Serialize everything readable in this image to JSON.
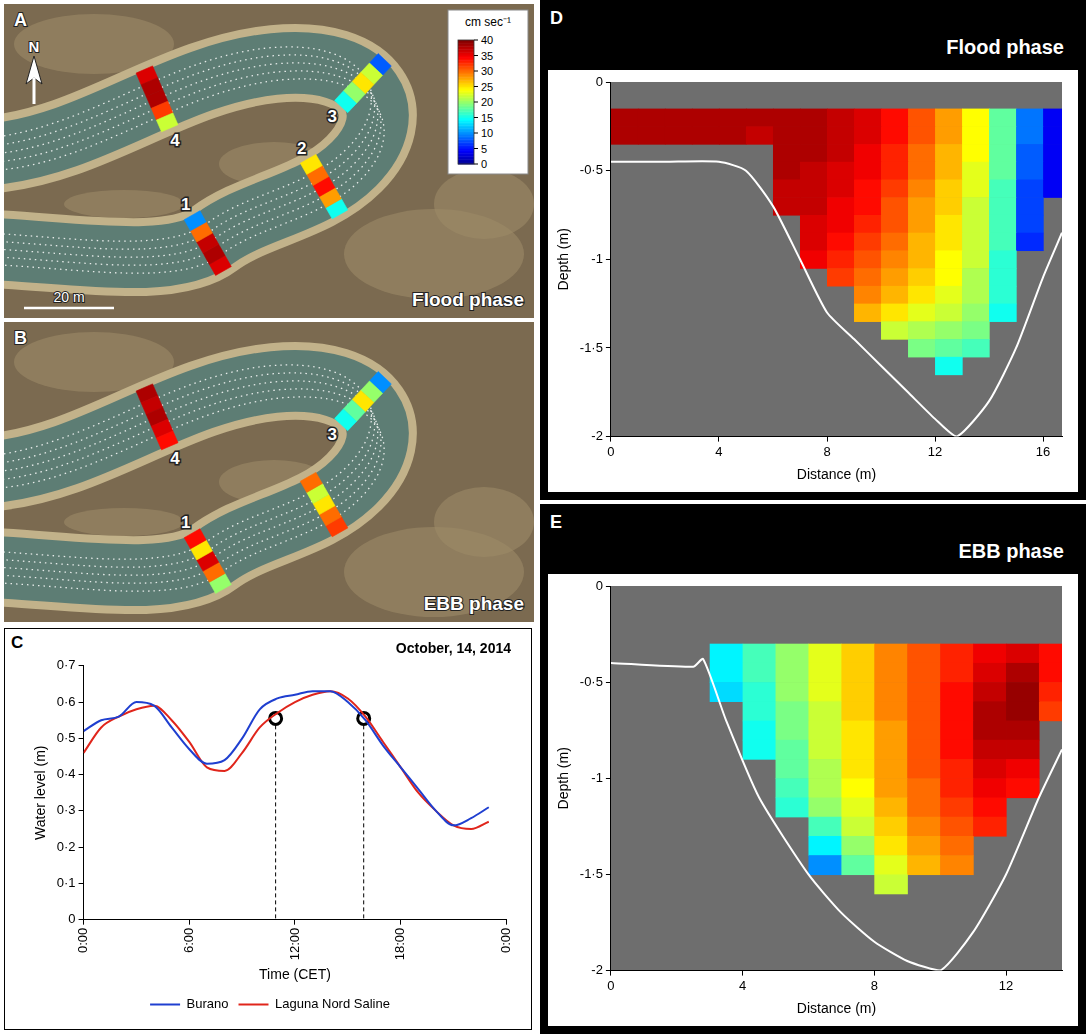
{
  "maps": [
    {
      "panel": "A",
      "title": "Flood phase",
      "north": "N",
      "scale_bar": "20 m",
      "colorbar": {
        "title": "cm sec⁻¹",
        "range": [
          0,
          40
        ],
        "ticks": [
          0,
          5,
          10,
          15,
          20,
          25,
          30,
          35,
          40
        ]
      },
      "transects": [
        {
          "label": "1",
          "values": [
            36,
            38,
            37,
            30,
            10
          ]
        },
        {
          "label": "2",
          "values": [
            15,
            28,
            34,
            30,
            25
          ]
        },
        {
          "label": "3",
          "values": [
            8,
            22,
            25,
            20,
            15
          ]
        },
        {
          "label": "4",
          "values": [
            36,
            38,
            38,
            32,
            22
          ]
        }
      ]
    },
    {
      "panel": "B",
      "title": "EBB phase",
      "transects": [
        {
          "label": "1",
          "values": [
            20,
            30,
            36,
            25,
            34
          ]
        },
        {
          "label": null,
          "values": [
            32,
            30,
            25,
            22,
            30
          ]
        },
        {
          "label": "3",
          "values": [
            10,
            20,
            25,
            18,
            15
          ]
        },
        {
          "label": "4",
          "values": [
            38,
            37,
            38,
            36,
            34
          ]
        }
      ]
    }
  ],
  "chart_data": [
    {
      "panel": "C",
      "type": "line",
      "title": "October, 14, 2014",
      "x_label": "Time (CET)",
      "y_label": "Water level (m)",
      "x": [
        0,
        1,
        2,
        3,
        4,
        5,
        6,
        7,
        8,
        9,
        10,
        11,
        12,
        13,
        14,
        15,
        16,
        17,
        18,
        19,
        20,
        21,
        22,
        23
      ],
      "series": [
        {
          "name": "Burano",
          "color": "#1f3fd0",
          "line_style": "solid",
          "values": [
            0.52,
            0.55,
            0.56,
            0.6,
            0.59,
            0.53,
            0.47,
            0.43,
            0.44,
            0.5,
            0.58,
            0.61,
            0.62,
            0.63,
            0.63,
            0.6,
            0.55,
            0.48,
            0.42,
            0.36,
            0.3,
            0.26,
            0.28,
            0.31
          ]
        },
        {
          "name": "Laguna Nord Saline",
          "color": "#e0251b",
          "line_style": "solid",
          "values": [
            0.46,
            0.53,
            0.56,
            0.58,
            0.59,
            0.55,
            0.49,
            0.42,
            0.41,
            0.46,
            0.53,
            0.57,
            0.6,
            0.62,
            0.63,
            0.61,
            0.56,
            0.49,
            0.42,
            0.35,
            0.3,
            0.26,
            0.25,
            0.27
          ]
        }
      ],
      "points": {
        "marker": "circle",
        "x": [
          10.9,
          15.9
        ],
        "values": [
          0.555,
          0.555
        ]
      },
      "xlim": [
        0,
        24
      ],
      "xticks": [
        {
          "value": 0,
          "label": "0:00"
        },
        {
          "value": 6,
          "label": "6:00"
        },
        {
          "value": 12,
          "label": "12:00"
        },
        {
          "value": 18,
          "label": "18:00"
        },
        {
          "value": 24,
          "label": "0:00"
        }
      ],
      "ylim": [
        0,
        0.7
      ],
      "yticks": [
        0,
        {
          "value": 0.1,
          "label": "0·1"
        },
        {
          "value": 0.2,
          "label": "0·2"
        },
        {
          "value": 0.3,
          "label": "0·3"
        },
        {
          "value": 0.4,
          "label": "0·4"
        },
        {
          "value": 0.5,
          "label": "0·5"
        },
        {
          "value": 0.6,
          "label": "0·6"
        },
        {
          "value": 0.7,
          "label": "0·7"
        }
      ],
      "grid": false,
      "legend": "bottom"
    },
    {
      "panel": "D",
      "type": "heatmap",
      "title": "Flood phase",
      "x_label": "Distance (m)",
      "y_label": "Depth (m)",
      "xlim": [
        0,
        16.7
      ],
      "xticks": [
        0,
        4,
        8,
        12,
        16
      ],
      "ylim": [
        -2,
        0
      ],
      "yticks": [
        -2,
        {
          "value": -1.5,
          "label": "-1·5"
        },
        -1,
        {
          "value": -0.5,
          "label": "-0·5"
        },
        0
      ],
      "grid": false,
      "cells": {
        "x": [
          0.5,
          1.5,
          2.5,
          3.5,
          4.5,
          5.5,
          6.5,
          7.5,
          8.5,
          9.5,
          10.5,
          11.5,
          12.5,
          13.5,
          14.5,
          15.5,
          16.5
        ],
        "y": [
          -0.2,
          -0.3,
          -0.4,
          -0.5,
          -0.6,
          -0.7,
          -0.8,
          -0.9,
          -1.0,
          -1.1,
          -1.2,
          -1.3,
          -1.4,
          -1.5,
          -1.6
        ],
        "values": [
          [
            38,
            38,
            38,
            38,
            38,
            38,
            38,
            38,
            37,
            36,
            34,
            31,
            28,
            24,
            18,
            9,
            4
          ],
          [
            38,
            38,
            38,
            38,
            38,
            37,
            38,
            38,
            37,
            36,
            34,
            31,
            28,
            24,
            18,
            9,
            4
          ],
          [
            null,
            null,
            null,
            null,
            null,
            null,
            38,
            38,
            37,
            35,
            33,
            30,
            27,
            24,
            18,
            8,
            4
          ],
          [
            null,
            null,
            null,
            null,
            null,
            null,
            38,
            37,
            36,
            35,
            33,
            30,
            27,
            23,
            18,
            8,
            4
          ],
          [
            null,
            null,
            null,
            null,
            null,
            null,
            37,
            37,
            36,
            34,
            32,
            29,
            26,
            23,
            17,
            7,
            4
          ],
          [
            null,
            null,
            null,
            null,
            null,
            null,
            37,
            37,
            35,
            34,
            31,
            28,
            26,
            22,
            17,
            7,
            null
          ],
          [
            null,
            null,
            null,
            null,
            null,
            null,
            null,
            36,
            35,
            33,
            31,
            28,
            25,
            22,
            17,
            7,
            null
          ],
          [
            null,
            null,
            null,
            null,
            null,
            null,
            null,
            36,
            34,
            32,
            30,
            27,
            25,
            22,
            17,
            6,
            null
          ],
          [
            null,
            null,
            null,
            null,
            null,
            null,
            null,
            35,
            33,
            31,
            29,
            27,
            24,
            22,
            16,
            null,
            null
          ],
          [
            null,
            null,
            null,
            null,
            null,
            null,
            null,
            null,
            32,
            30,
            28,
            26,
            24,
            21,
            16,
            null,
            null
          ],
          [
            null,
            null,
            null,
            null,
            null,
            null,
            null,
            null,
            null,
            29,
            27,
            25,
            23,
            21,
            16,
            null,
            null
          ],
          [
            null,
            null,
            null,
            null,
            null,
            null,
            null,
            null,
            null,
            27,
            25,
            23,
            22,
            20,
            15,
            null,
            null
          ],
          [
            null,
            null,
            null,
            null,
            null,
            null,
            null,
            null,
            null,
            null,
            22,
            21,
            20,
            19,
            null,
            null,
            null
          ],
          [
            null,
            null,
            null,
            null,
            null,
            null,
            null,
            null,
            null,
            null,
            null,
            19,
            18,
            17,
            null,
            null,
            null
          ],
          [
            null,
            null,
            null,
            null,
            null,
            null,
            null,
            null,
            null,
            null,
            null,
            null,
            15,
            null,
            null,
            null,
            null
          ]
        ]
      },
      "profile": {
        "color": "#ffffff",
        "x": [
          0,
          2,
          4,
          5,
          6,
          7,
          8,
          9,
          10,
          11,
          12,
          12.8,
          14,
          15,
          16,
          16.7
        ],
        "values": [
          -0.45,
          -0.45,
          -0.45,
          -0.5,
          -0.7,
          -1.0,
          -1.3,
          -1.45,
          -1.6,
          -1.75,
          -1.9,
          -2.0,
          -1.8,
          -1.5,
          -1.1,
          -0.85
        ]
      }
    },
    {
      "panel": "E",
      "type": "heatmap",
      "title": "EBB phase",
      "x_label": "Distance (m)",
      "y_label": "Depth (m)",
      "xlim": [
        0,
        13.7
      ],
      "xticks": [
        0,
        4,
        8,
        12
      ],
      "ylim": [
        -2,
        0
      ],
      "yticks": [
        -2,
        {
          "value": -1.5,
          "label": "-1·5"
        },
        -1,
        {
          "value": -0.5,
          "label": "-0·5"
        },
        0
      ],
      "grid": false,
      "cells": {
        "x": [
          3.5,
          4.5,
          5.5,
          6.5,
          7.5,
          8.5,
          9.5,
          10.5,
          11.5,
          12.5,
          13.5
        ],
        "y": [
          -0.35,
          -0.45,
          -0.55,
          -0.65,
          -0.75,
          -0.85,
          -0.95,
          -1.05,
          -1.15,
          -1.25,
          -1.35,
          -1.45,
          -1.55
        ],
        "values": [
          [
            14,
            17,
            20,
            23,
            26,
            29,
            31,
            33,
            35,
            36,
            34
          ],
          [
            14,
            17,
            20,
            23,
            26,
            29,
            31,
            33,
            36,
            38,
            34
          ],
          [
            13,
            16,
            20,
            23,
            26,
            29,
            31,
            34,
            37,
            39,
            33
          ],
          [
            null,
            16,
            19,
            22,
            26,
            29,
            31,
            34,
            38,
            39,
            32
          ],
          [
            null,
            15,
            19,
            22,
            25,
            28,
            31,
            34,
            38,
            38,
            null
          ],
          [
            null,
            15,
            18,
            22,
            25,
            28,
            31,
            34,
            37,
            37,
            null
          ],
          [
            null,
            null,
            18,
            21,
            25,
            28,
            31,
            33,
            36,
            35,
            null
          ],
          [
            null,
            null,
            17,
            21,
            24,
            28,
            30,
            33,
            35,
            34,
            null
          ],
          [
            null,
            null,
            16,
            20,
            23,
            27,
            30,
            32,
            34,
            null,
            null
          ],
          [
            null,
            null,
            null,
            17,
            22,
            26,
            29,
            31,
            33,
            null,
            null
          ],
          [
            null,
            null,
            null,
            14,
            20,
            25,
            28,
            30,
            null,
            null,
            null
          ],
          [
            null,
            null,
            null,
            10,
            18,
            23,
            27,
            29,
            null,
            null,
            null
          ],
          [
            null,
            null,
            null,
            null,
            null,
            22,
            null,
            null,
            null,
            null,
            null
          ]
        ]
      },
      "profile": {
        "color": "#ffffff",
        "x": [
          0,
          2.5,
          2.8,
          3.5,
          4.5,
          6,
          7,
          8,
          9,
          10,
          11,
          12,
          13,
          13.7
        ],
        "values": [
          -0.4,
          -0.42,
          -0.38,
          -0.7,
          -1.1,
          -1.5,
          -1.7,
          -1.85,
          -1.95,
          -2.0,
          -1.8,
          -1.5,
          -1.1,
          -0.85
        ]
      }
    }
  ]
}
